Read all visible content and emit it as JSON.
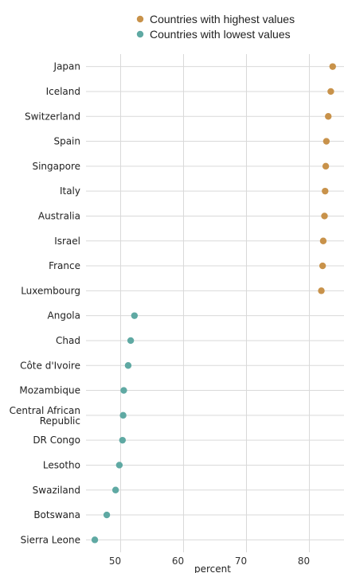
{
  "chart_data": {
    "type": "scatter",
    "title": "",
    "xlabel": "percent",
    "ylabel": "",
    "xlim": [
      44.5,
      85.5
    ],
    "xticks": [
      50,
      60,
      70,
      80
    ],
    "grid": true,
    "legend_position": "top",
    "series": [
      {
        "name": "Countries with highest values",
        "color": "#c8924a",
        "points": [
          {
            "label": "Japan",
            "value": 83.7
          },
          {
            "label": "Iceland",
            "value": 83.4
          },
          {
            "label": "Switzerland",
            "value": 83.0
          },
          {
            "label": "Spain",
            "value": 82.7
          },
          {
            "label": "Singapore",
            "value": 82.6
          },
          {
            "label": "Italy",
            "value": 82.5
          },
          {
            "label": "Australia",
            "value": 82.4
          },
          {
            "label": "Israel",
            "value": 82.2
          },
          {
            "label": "France",
            "value": 82.1
          },
          {
            "label": "Luxembourg",
            "value": 81.9
          }
        ]
      },
      {
        "name": "Countries with lowest values",
        "color": "#5fa9a3",
        "points": [
          {
            "label": "Angola",
            "value": 52.2
          },
          {
            "label": "Chad",
            "value": 51.6
          },
          {
            "label": "Côte d'Ivoire",
            "value": 51.2
          },
          {
            "label": "Mozambique",
            "value": 50.5
          },
          {
            "label": "Central African Republic",
            "value": 50.4
          },
          {
            "label": "DR Congo",
            "value": 50.3
          },
          {
            "label": "Lesotho",
            "value": 49.8
          },
          {
            "label": "Swaziland",
            "value": 49.2
          },
          {
            "label": "Botswana",
            "value": 47.8
          },
          {
            "label": "Sierra Leone",
            "value": 45.9
          }
        ]
      }
    ]
  }
}
